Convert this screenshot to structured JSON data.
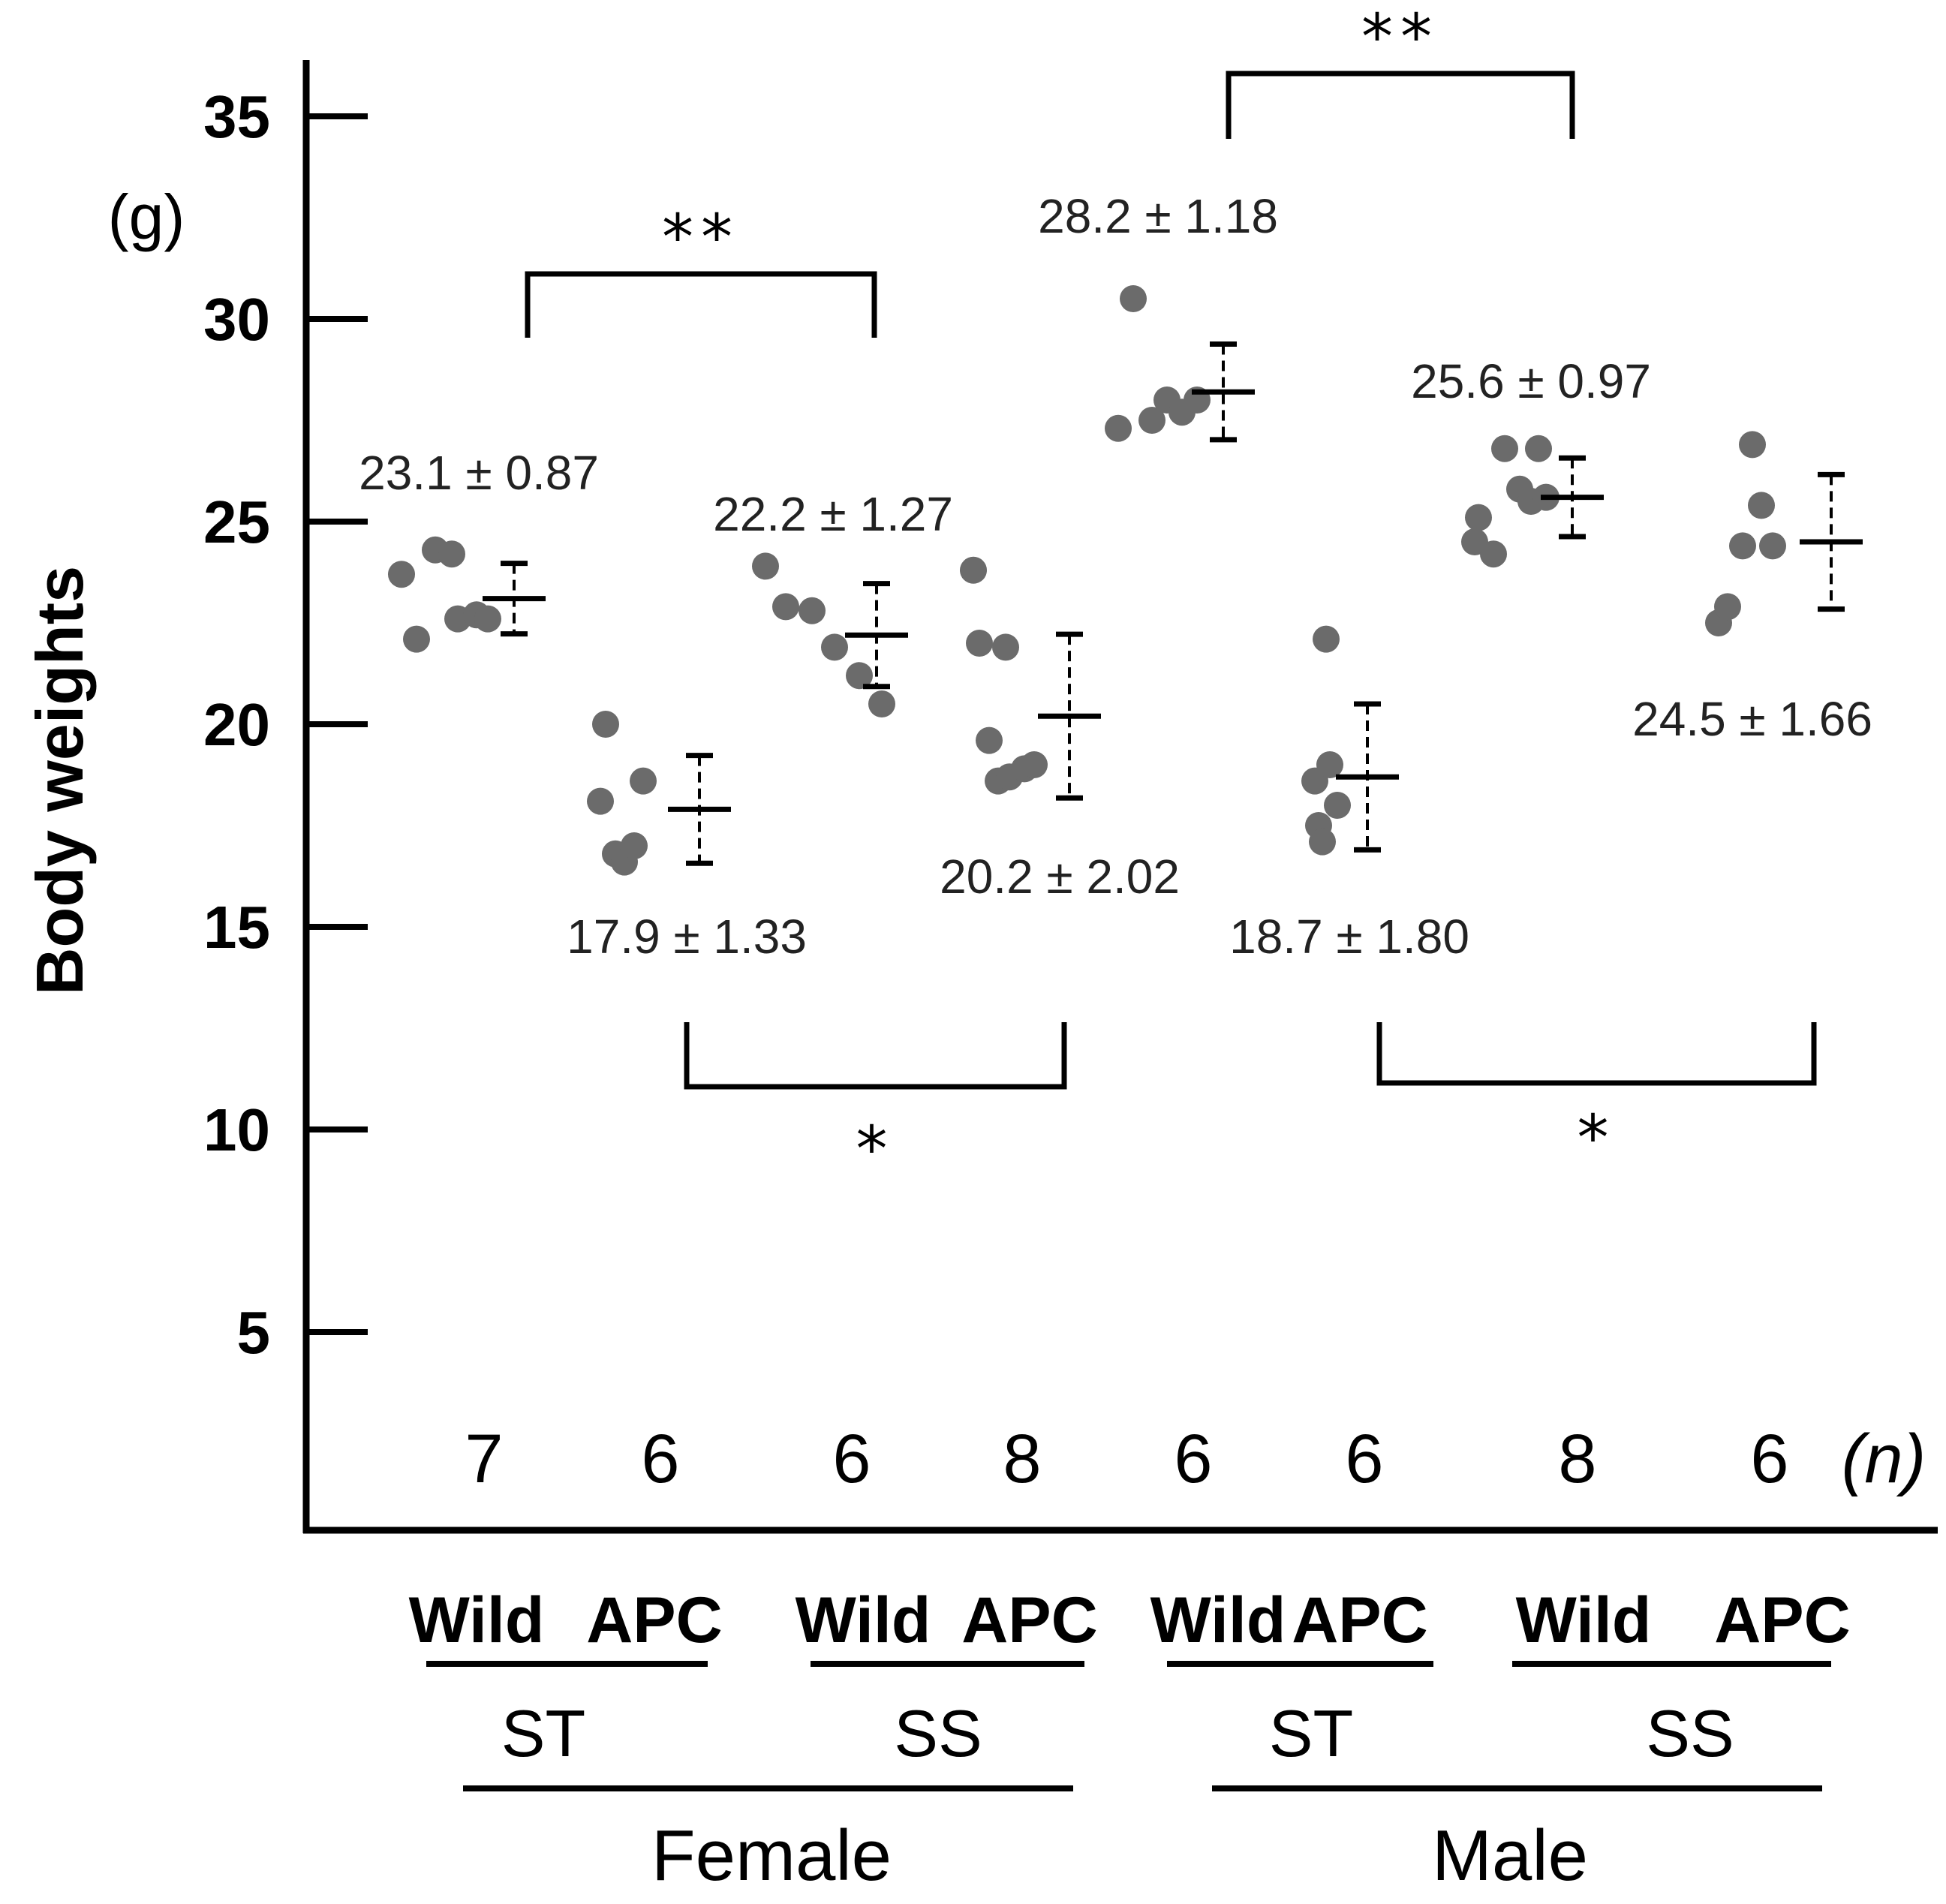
{
  "chart_data": {
    "type": "scatter",
    "title": "",
    "ylabel": "Body weights",
    "y_unit": "(g)",
    "ylim": [
      0,
      37
    ],
    "yticks": [
      5,
      10,
      15,
      20,
      25,
      30,
      35
    ],
    "n_suffix": "(n)",
    "colors": {
      "points": "#6b6b6b",
      "lines": "#000000"
    },
    "groups": [
      {
        "id": "female-st-wild",
        "genotype": "Wild",
        "diet": "ST",
        "sex": "Female",
        "n": "7",
        "stat": "23.1 ± 0.87",
        "mean": 23.1,
        "sd": 0.87,
        "points": [
          23.7,
          22.1,
          24.3,
          24.2,
          22.6,
          22.7,
          22.6
        ]
      },
      {
        "id": "female-st-apc",
        "genotype": "APC",
        "diet": "ST",
        "sex": "Female",
        "n": "6",
        "stat": "17.9 ± 1.33",
        "mean": 17.9,
        "sd": 1.33,
        "points": [
          20.0,
          18.1,
          16.8,
          16.6,
          17.0,
          18.6
        ]
      },
      {
        "id": "female-ss-wild",
        "genotype": "Wild",
        "diet": "SS",
        "sex": "Female",
        "n": "6",
        "stat": "22.2 ± 1.27",
        "mean": 22.2,
        "sd": 1.27,
        "points": [
          23.9,
          22.9,
          22.8,
          21.9,
          21.2,
          20.5
        ]
      },
      {
        "id": "female-ss-apc",
        "genotype": "APC",
        "diet": "SS",
        "sex": "Female",
        "n": "8",
        "stat": "20.2 ± 2.02",
        "mean": 20.2,
        "sd": 2.02,
        "points": [
          23.8,
          22.0,
          21.9,
          19.6,
          18.6,
          18.7,
          18.9,
          19.0
        ]
      },
      {
        "id": "male-st-wild",
        "genotype": "Wild",
        "diet": "ST",
        "sex": "Male",
        "n": "6",
        "stat": "28.2 ± 1.18",
        "mean": 28.2,
        "sd": 1.18,
        "points": [
          27.3,
          30.5,
          27.5,
          28.0,
          27.7,
          28.0
        ]
      },
      {
        "id": "male-st-apc",
        "genotype": "APC",
        "diet": "ST",
        "sex": "Male",
        "n": "6",
        "stat": "18.7 ± 1.80",
        "mean": 18.7,
        "sd": 1.8,
        "points": [
          18.6,
          17.5,
          17.1,
          18.0,
          19.0,
          22.1
        ]
      },
      {
        "id": "male-ss-wild",
        "genotype": "Wild",
        "diet": "SS",
        "sex": "Male",
        "n": "8",
        "stat": "25.6 ± 0.97",
        "mean": 25.6,
        "sd": 0.97,
        "points": [
          24.5,
          24.2,
          25.1,
          26.8,
          25.8,
          25.5,
          26.8,
          25.6
        ]
      },
      {
        "id": "male-ss-apc",
        "genotype": "APC",
        "diet": "SS",
        "sex": "Male",
        "n": "6",
        "stat": "24.5 ± 1.66",
        "mean": 24.5,
        "sd": 1.66,
        "points": [
          22.5,
          22.9,
          24.4,
          26.9,
          25.4,
          24.4
        ]
      }
    ],
    "comparisons": [
      {
        "label": "**",
        "between": [
          "female-st-wild",
          "female-ss-wild"
        ]
      },
      {
        "label": "**",
        "between": [
          "male-st-wild",
          "male-ss-wild"
        ]
      },
      {
        "label": "*",
        "between": [
          "female-st-apc",
          "female-ss-apc"
        ]
      },
      {
        "label": "*",
        "between": [
          "male-st-apc",
          "male-ss-apc"
        ]
      }
    ],
    "diet_labels": [
      "ST",
      "SS",
      "ST",
      "SS"
    ],
    "sex_labels": [
      "Female",
      "Male"
    ]
  }
}
